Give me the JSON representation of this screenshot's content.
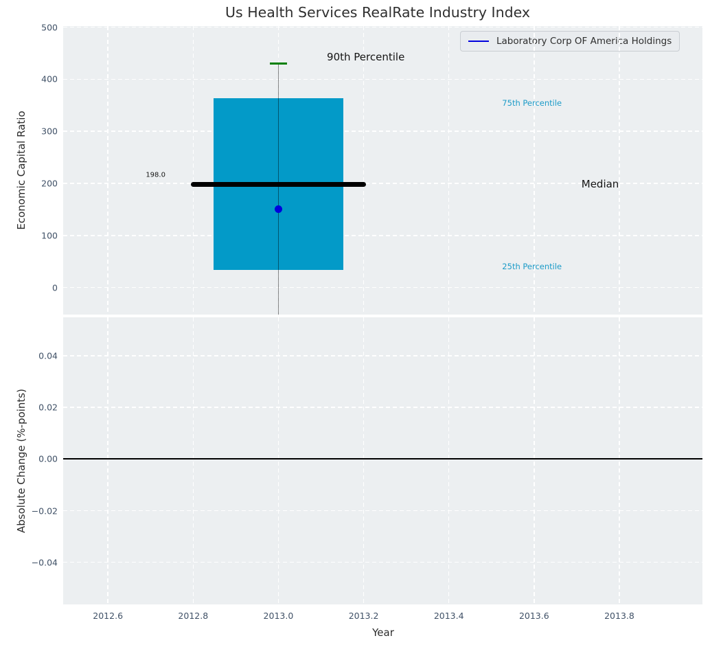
{
  "figure": {
    "panel_bg": "#eceff1",
    "grid_color": "#ffffff",
    "tick_color": "#3f5066"
  },
  "chart_data": {
    "type": "box",
    "title": "Us Health Services RealRate Industry Index",
    "xlabel": "Year",
    "xlim": [
      2012.495,
      2013.995
    ],
    "xtick_values": [
      2012.6,
      2012.8,
      2013.0,
      2013.2,
      2013.4,
      2013.6,
      2013.8
    ],
    "xtick_labels": [
      "2012.6",
      "2012.8",
      "2013.0",
      "2013.2",
      "2013.4",
      "2013.6",
      "2013.8"
    ],
    "grid": true,
    "legend": {
      "label": "Laboratory Corp OF America Holdings",
      "line_color": "#0000dd",
      "position": "upper right"
    },
    "panels": [
      {
        "ylabel": "Economic Capital Ratio",
        "ylim": [
          -52,
          502
        ],
        "ytick_values": [
          500,
          400,
          300,
          200,
          100,
          0
        ],
        "ytick_labels": [
          "500",
          "400",
          "300",
          "200",
          "100",
          "0"
        ],
        "box": {
          "x": 2013.0,
          "q1": 34,
          "q3": 364,
          "median": 198.0,
          "p90": 430,
          "box_width": 0.305,
          "median_width": 0.41,
          "cap_width": 0.04,
          "whisker_low_clipped": true,
          "box_color": "#039ac8",
          "median_color": "#000000",
          "cap_color": "#007f00",
          "whisker_color": "rgba(0,0,0,0.45)",
          "company_point": {
            "x": 2013.0,
            "y": 150,
            "color": "#0000dd"
          }
        },
        "annotations": [
          {
            "text": "198.0",
            "x": 2012.735,
            "y": 216,
            "color": "#141414",
            "size": 10,
            "align": "right"
          },
          {
            "text": "90th Percentile",
            "x": 2013.205,
            "y": 442,
            "color": "#141414",
            "size": 15,
            "align": "center"
          },
          {
            "text": "75th Percentile",
            "x": 2013.595,
            "y": 354,
            "color": "#1c9bc8",
            "size": 11.5,
            "align": "center"
          },
          {
            "text": "Median",
            "x": 2013.755,
            "y": 198,
            "color": "#141414",
            "size": 15,
            "align": "center"
          },
          {
            "text": "25th Percentile",
            "x": 2013.595,
            "y": 40,
            "color": "#1c9bc8",
            "size": 11.5,
            "align": "center"
          }
        ]
      },
      {
        "ylabel": "Absolute Change (%-points)",
        "ylim": [
          -0.0563,
          0.0549
        ],
        "ytick_values": [
          0.04,
          0.02,
          0.0,
          -0.02,
          -0.04
        ],
        "ytick_labels": [
          "0.04",
          "0.02",
          "0.00",
          "−0.02",
          "−0.04"
        ],
        "zero_line": {
          "y": 0.0,
          "color": "#000000"
        }
      }
    ]
  }
}
